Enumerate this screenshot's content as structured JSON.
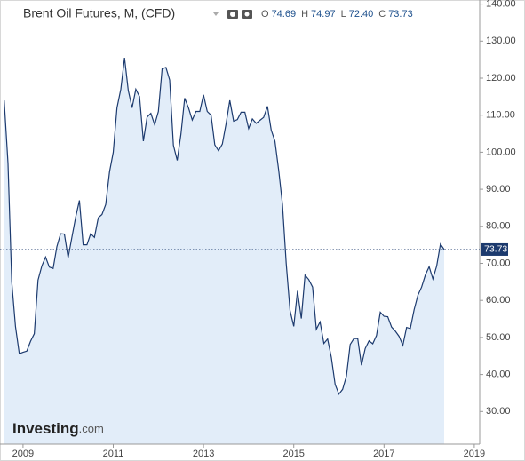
{
  "chart_data": {
    "type": "area",
    "title": "Brent Oil Futures, M, (CFD)",
    "ohlc": [
      {
        "label": "O",
        "value": "74.69"
      },
      {
        "label": "H",
        "value": "74.97"
      },
      {
        "label": "L",
        "value": "72.40"
      },
      {
        "label": "C",
        "value": "73.73"
      }
    ],
    "logo": "Investing",
    "logo_suffix": ".com",
    "current": 73.73,
    "color": "#1c3a6e",
    "fill": "#e2edf9",
    "x": [
      2008.583,
      2008.667,
      2008.75,
      2008.833,
      2008.917,
      2009,
      2009.083,
      2009.167,
      2009.25,
      2009.333,
      2009.417,
      2009.5,
      2009.583,
      2009.667,
      2009.75,
      2009.833,
      2009.917,
      2010,
      2010.083,
      2010.167,
      2010.25,
      2010.333,
      2010.417,
      2010.5,
      2010.583,
      2010.667,
      2010.75,
      2010.833,
      2010.917,
      2011,
      2011.083,
      2011.167,
      2011.25,
      2011.333,
      2011.417,
      2011.5,
      2011.583,
      2011.667,
      2011.75,
      2011.833,
      2011.917,
      2012,
      2012.083,
      2012.167,
      2012.25,
      2012.333,
      2012.417,
      2012.5,
      2012.583,
      2012.667,
      2012.75,
      2012.833,
      2012.917,
      2013,
      2013.083,
      2013.167,
      2013.25,
      2013.333,
      2013.417,
      2013.5,
      2013.583,
      2013.667,
      2013.75,
      2013.833,
      2013.917,
      2014,
      2014.083,
      2014.167,
      2014.25,
      2014.333,
      2014.417,
      2014.5,
      2014.583,
      2014.667,
      2014.75,
      2014.833,
      2014.917,
      2015,
      2015.083,
      2015.167,
      2015.25,
      2015.333,
      2015.417,
      2015.5,
      2015.583,
      2015.667,
      2015.75,
      2015.833,
      2015.917,
      2016,
      2016.083,
      2016.167,
      2016.25,
      2016.333,
      2016.417,
      2016.5,
      2016.583,
      2016.667,
      2016.75,
      2016.833,
      2016.917,
      2017,
      2017.083,
      2017.167,
      2017.25,
      2017.333,
      2017.417,
      2017.5,
      2017.583,
      2017.667,
      2017.75,
      2017.833,
      2017.917,
      2018,
      2018.083,
      2018.167,
      2018.25,
      2018.333
    ],
    "values": [
      114,
      97,
      65,
      53,
      45.6,
      46,
      46.3,
      49,
      51,
      65.5,
      69.3,
      71.7,
      69,
      68.6,
      74.5,
      78,
      77.9,
      71.5,
      77,
      82.5,
      87,
      75,
      75,
      78,
      77,
      82.3,
      83.2,
      85.9,
      94.7,
      100,
      112,
      117,
      125.5,
      116.7,
      112,
      117,
      115,
      103,
      109.5,
      110.5,
      107.4,
      111,
      122.5,
      122.9,
      119.5,
      101.9,
      97.8,
      104.9,
      114.6,
      112,
      108.7,
      111,
      111,
      115.5,
      111,
      110,
      102,
      100.4,
      102.2,
      107.7,
      114,
      108.4,
      108.8,
      110.8,
      110.8,
      106.4,
      109,
      107.8,
      108.6,
      109.4,
      112.4,
      106,
      103,
      95,
      85.9,
      70,
      57.3,
      53,
      62.6,
      55.1,
      66.8,
      65.6,
      63.6,
      52.2,
      54.2,
      48.4,
      49.6,
      44.6,
      37.3,
      34.7,
      36,
      39.6,
      48.1,
      49.7,
      49.7,
      42.5,
      47,
      49.1,
      48.3,
      50.5,
      56.8,
      55.7,
      55.6,
      52.8,
      51.7,
      50.3,
      47.9,
      52.7,
      52.4,
      57.5,
      61.4,
      63.6,
      66.9,
      69.1,
      65.8,
      69.3,
      75.2,
      73.73
    ],
    "xlim": [
      2008.49,
      2019.12
    ],
    "xticks": [
      2009,
      2011,
      2013,
      2015,
      2017,
      2019
    ],
    "ylim": [
      21.2,
      141.1
    ],
    "yticks": [
      {
        "value": 140,
        "label": "140.00"
      },
      {
        "value": 130,
        "label": "130.00"
      },
      {
        "value": 120,
        "label": "120.00"
      },
      {
        "value": 110,
        "label": "110.00"
      },
      {
        "value": 100,
        "label": "100.00"
      },
      {
        "value": 90,
        "label": "90.00"
      },
      {
        "value": 80,
        "label": "80.00"
      },
      {
        "value": 70,
        "label": "70.00"
      },
      {
        "value": 60,
        "label": "60.00"
      },
      {
        "value": 50,
        "label": "50.00"
      },
      {
        "value": 40,
        "label": "40.00"
      },
      {
        "value": 30,
        "label": "30.00"
      }
    ]
  }
}
